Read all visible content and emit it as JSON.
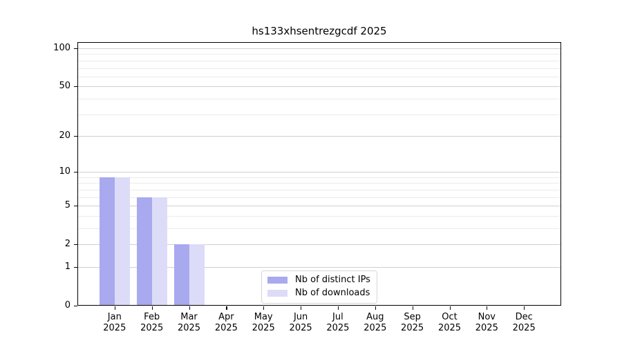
{
  "title": "hs133xhsentrezgcdf 2025",
  "chart_data": {
    "type": "bar",
    "title": "hs133xhsentrezgcdf 2025",
    "categories": [
      "Jan",
      "Feb",
      "Mar",
      "Apr",
      "May",
      "Jun",
      "Jul",
      "Aug",
      "Sep",
      "Oct",
      "Nov",
      "Dec"
    ],
    "category_sublabel": "2025",
    "series": [
      {
        "name": "Nb of distinct IPs",
        "color": "#a9a9ef",
        "values": [
          9,
          6,
          2,
          0,
          0,
          0,
          0,
          0,
          0,
          0,
          0,
          0
        ]
      },
      {
        "name": "Nb of downloads",
        "color": "#dcdcf8",
        "values": [
          9,
          6,
          2,
          0,
          0,
          0,
          0,
          0,
          0,
          0,
          0,
          0
        ]
      }
    ],
    "yscale": "log1p",
    "ylim": [
      0,
      100
    ],
    "yticks": [
      0,
      1,
      2,
      5,
      10,
      20,
      50,
      100
    ],
    "yticks_minor": [
      3,
      4,
      6,
      7,
      8,
      9,
      30,
      40,
      60,
      70,
      80,
      90
    ],
    "grid": true,
    "legend_position": "lower center",
    "colors": {
      "grid_major": "#cfcfcf",
      "grid_minor": "#ebebeb",
      "axis": "#000000"
    }
  }
}
